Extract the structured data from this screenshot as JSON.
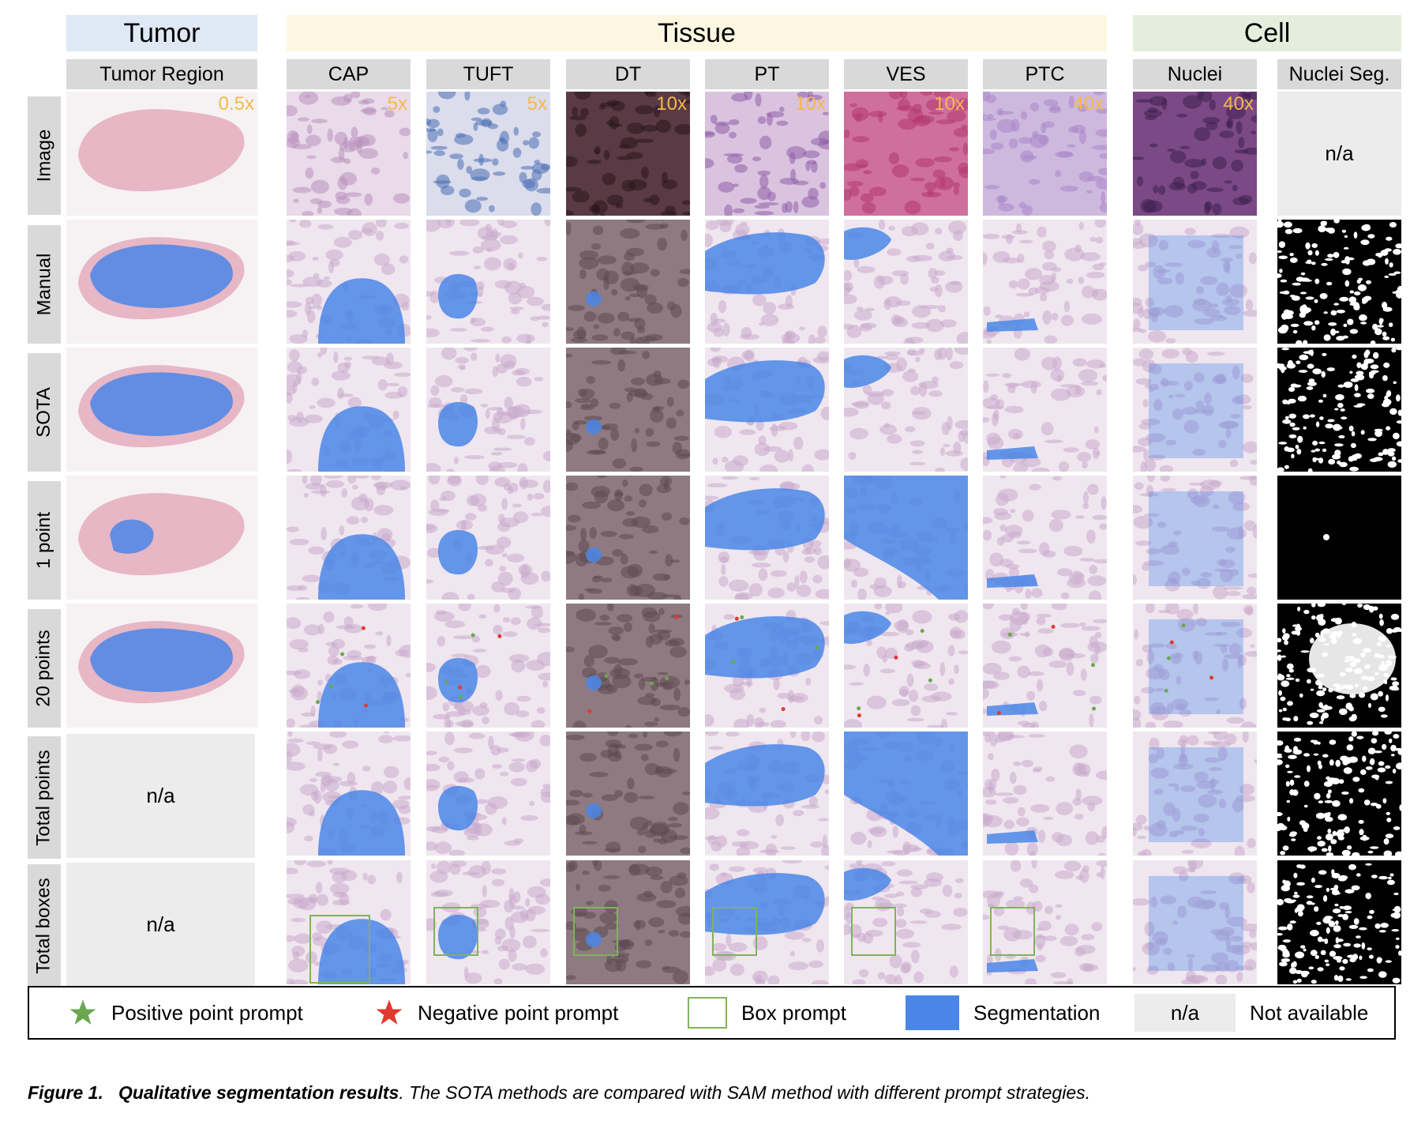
{
  "figure": {
    "groups": [
      {
        "label": "Tumor",
        "color": "#dfe8f5"
      },
      {
        "label": "Tissue",
        "color": "#fdf7e1"
      },
      {
        "label": "Cell",
        "color": "#e3eedc"
      }
    ],
    "columns": [
      {
        "label": "Tumor Region",
        "mag": "0.5x"
      },
      {
        "label": "CAP",
        "mag": "5x"
      },
      {
        "label": "TUFT",
        "mag": "5x"
      },
      {
        "label": "DT",
        "mag": "10x"
      },
      {
        "label": "PT",
        "mag": "10x"
      },
      {
        "label": "VES",
        "mag": "10x"
      },
      {
        "label": "PTC",
        "mag": "40x"
      },
      {
        "label": "Nuclei",
        "mag": "40x"
      },
      {
        "label": "Nuclei Seg.",
        "mag": ""
      }
    ],
    "rows": [
      "Image",
      "Manual",
      "SOTA",
      "1 point",
      "20 points",
      "Total points",
      "Total boxes"
    ],
    "na_text": "n/a",
    "legend": {
      "positive": "Positive point prompt",
      "negative": "Negative point prompt",
      "box": "Box prompt",
      "segmentation": "Segmentation",
      "na": "n/a",
      "not_available": "Not available"
    },
    "caption": {
      "label": "Figure 1.",
      "title": "Qualitative segmentation results",
      "text": ". The SOTA methods are compared with SAM method with different prompt strategies."
    },
    "colors": {
      "positive_star": "#6aa84f",
      "negative_star": "#e03a2f",
      "box_outline": "#7fb35c",
      "segmentation": "#4a86e8",
      "magnification": "#f5b94a",
      "na_fill": "#ececec",
      "header_fill": "#d9d9d9"
    }
  }
}
